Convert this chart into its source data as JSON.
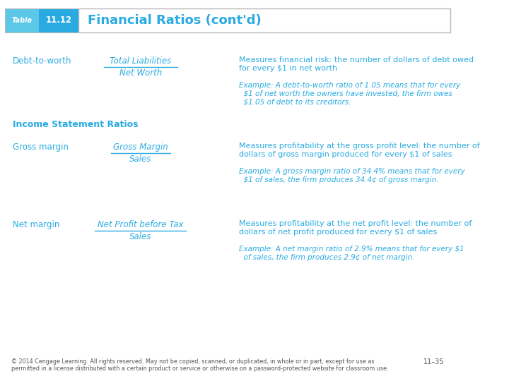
{
  "title": "Financial Ratios (cont'd)",
  "table_label": "Table",
  "table_number": "11.12",
  "text_color": "#29ABE2",
  "bg_color": "#FFFFFF",
  "rows": [
    {
      "name": "Debt-to-worth",
      "formula_top": "Total Liabilities",
      "formula_bottom": "Net Worth",
      "measure": "Measures financial risk: the number of dollars of debt owed\nfor every $1 in net worth",
      "example": "Example: A debt-to-worth ratio of 1.05 means that for every\n  $1 of net worth the owners have invested, the firm owes\n  $1.05 of debt to its creditors."
    },
    {
      "name": "Income Statement Ratios",
      "section_header": true
    },
    {
      "name": "Gross margin",
      "formula_top": "Gross Margin",
      "formula_bottom": "Sales",
      "measure": "Measures profitability at the gross profit level: the number of\ndollars of gross margin produced for every $1 of sales",
      "example": "Example: A gross margin ratio of 34.4% means that for every\n  $1 of sales, the firm produces 34.4¢ of gross margin."
    },
    {
      "name": "Net margin",
      "formula_top": "Net Profit before Tax",
      "formula_bottom": "Sales",
      "measure": "Measures profitability at the net profit level: the number of\ndollars of net profit produced for every $1 of sales",
      "example": "Example: A net margin ratio of 2.9% means that for every $1\n  of sales, the firm produces 2.9¢ of net margin."
    }
  ],
  "footer": "© 2014 Cengage Learning. All rights reserved. May not be copied, scanned, or duplicated, in whole or in part, except for use as\npermitted in a license distributed with a certain product or service or otherwise on a password-protected website for classroom use.",
  "page_num": "11–35"
}
